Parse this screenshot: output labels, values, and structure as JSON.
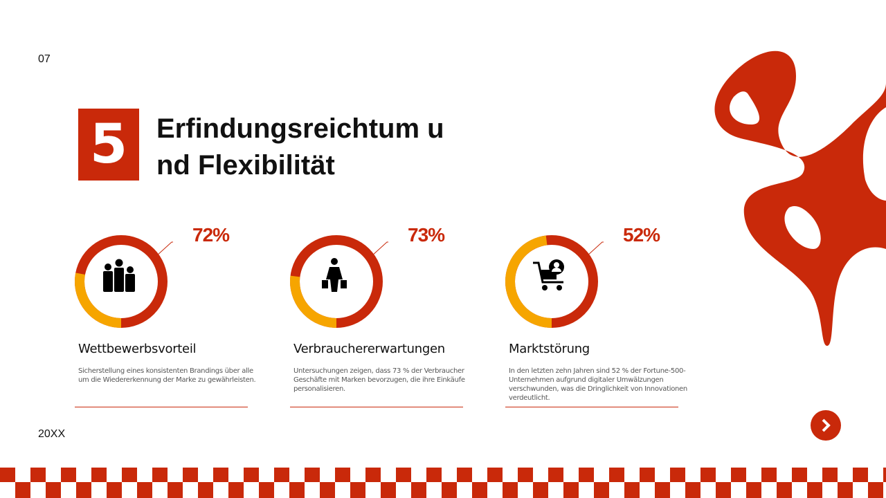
{
  "page_number": "07",
  "footer_year": "20XX",
  "section_number": "5",
  "title": "Erfindungsreichtum und Flexibilität",
  "colors": {
    "accent": "#c9290a",
    "secondary": "#f6a500"
  },
  "cards": [
    {
      "percent_label": "72%",
      "percent": 72,
      "icon": "people-group-icon",
      "title": "Wettbewerbsvorteil",
      "description": "Sicherstellung eines konsistenten Brandings über alle um die Wiedererkennung der Marke zu gewährleisten."
    },
    {
      "percent_label": "73%",
      "percent": 73,
      "icon": "shopper-bags-icon",
      "title": "Verbrauchererwartungen",
      "description": "Untersuchungen zeigen, dass 73 % der Verbraucher Geschäfte mit Marken bevorzugen, die ihre Einkäufe personalisieren."
    },
    {
      "percent_label": "52%",
      "percent": 52,
      "icon": "shopping-cart-user-icon",
      "title": "Marktstörung",
      "description": "In den letzten zehn Jahren sind 52 % der Fortune-500-Unternehmen aufgrund digitaler Umwälzungen verschwunden, was die Dringlichkeit von Innovationen verdeutlicht."
    }
  ]
}
